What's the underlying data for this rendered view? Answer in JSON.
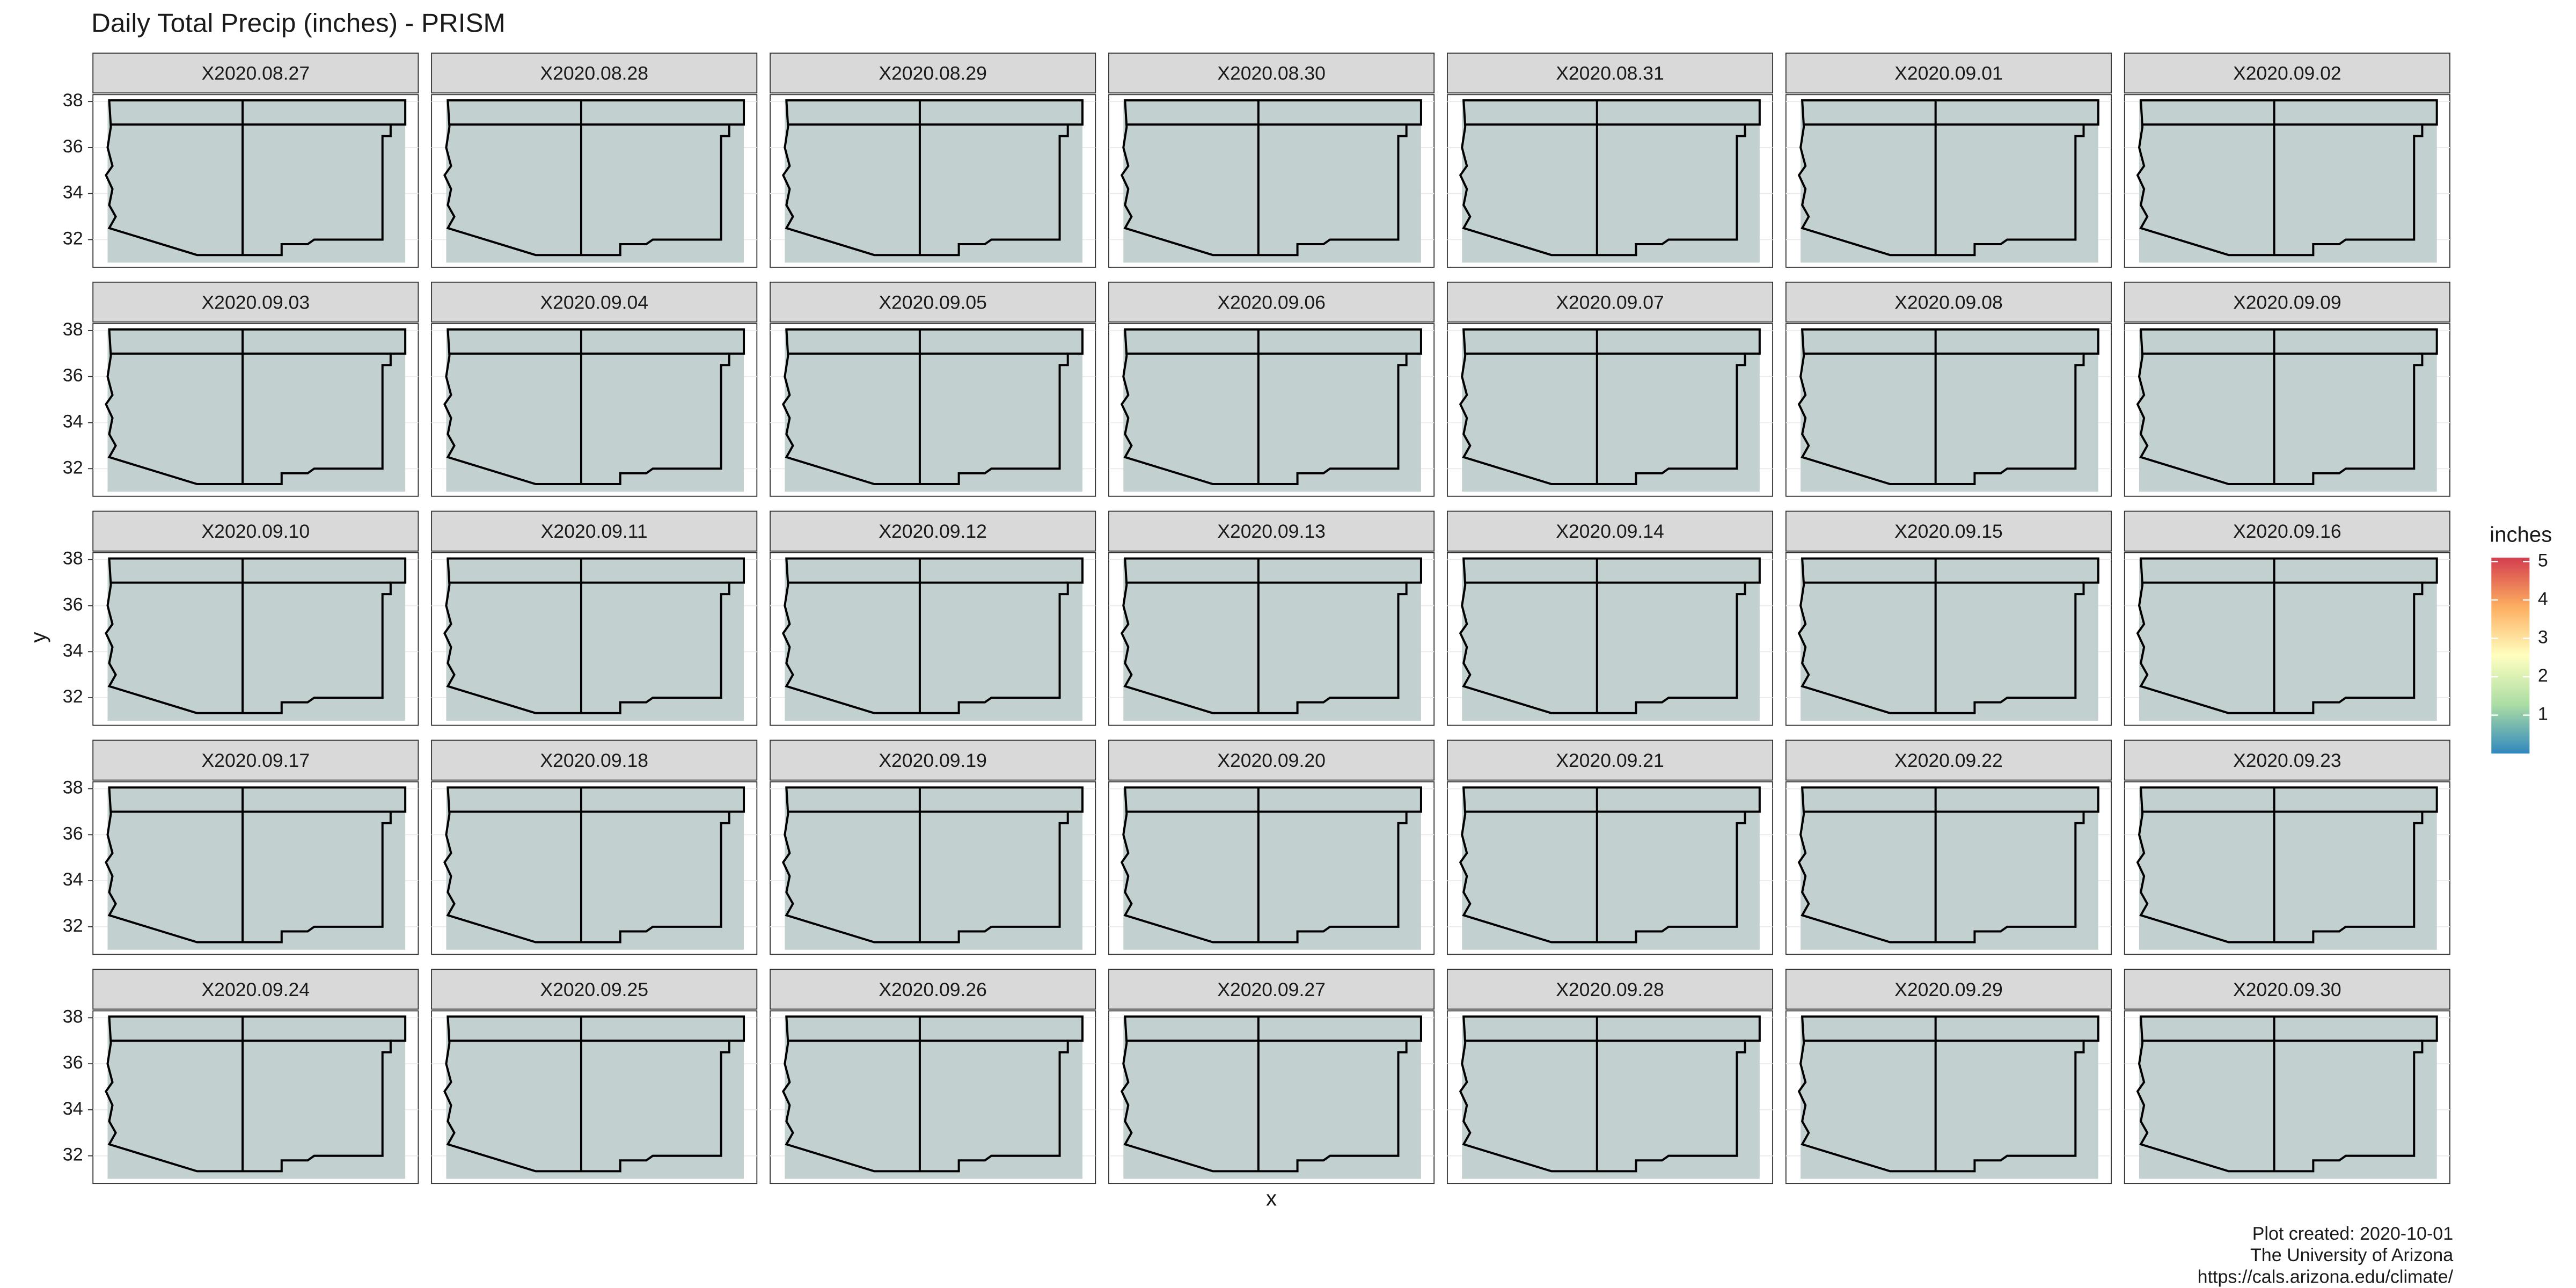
{
  "chart_data": {
    "type": "facet-map",
    "title": "Daily Total Precip (inches) - PRISM",
    "panels": [
      "X2020.08.27",
      "X2020.08.28",
      "X2020.08.29",
      "X2020.08.30",
      "X2020.08.31",
      "X2020.09.01",
      "X2020.09.02",
      "X2020.09.03",
      "X2020.09.04",
      "X2020.09.05",
      "X2020.09.06",
      "X2020.09.07",
      "X2020.09.08",
      "X2020.09.09",
      "X2020.09.10",
      "X2020.09.11",
      "X2020.09.12",
      "X2020.09.13",
      "X2020.09.14",
      "X2020.09.15",
      "X2020.09.16",
      "X2020.09.17",
      "X2020.09.18",
      "X2020.09.19",
      "X2020.09.20",
      "X2020.09.21",
      "X2020.09.22",
      "X2020.09.23",
      "X2020.09.24",
      "X2020.09.25",
      "X2020.09.26",
      "X2020.09.27",
      "X2020.09.28",
      "X2020.09.29",
      "X2020.09.30"
    ],
    "x_label": "x",
    "y_label": "y",
    "ylim": [
      30.8,
      38.3
    ],
    "yticks": [
      32,
      34,
      36,
      38
    ],
    "legend": {
      "title": "inches",
      "lim": [
        0,
        5.1
      ],
      "ticks": [
        1,
        2,
        3,
        4,
        5
      ],
      "colors": [
        "#3288bd",
        "#abdda4",
        "#ffffbf",
        "#fdae61",
        "#d53e4f"
      ]
    },
    "caption": [
      "Plot created: 2020-10-01",
      "The University of Arizona",
      "https://cals.arizona.edu/climate/"
    ]
  }
}
